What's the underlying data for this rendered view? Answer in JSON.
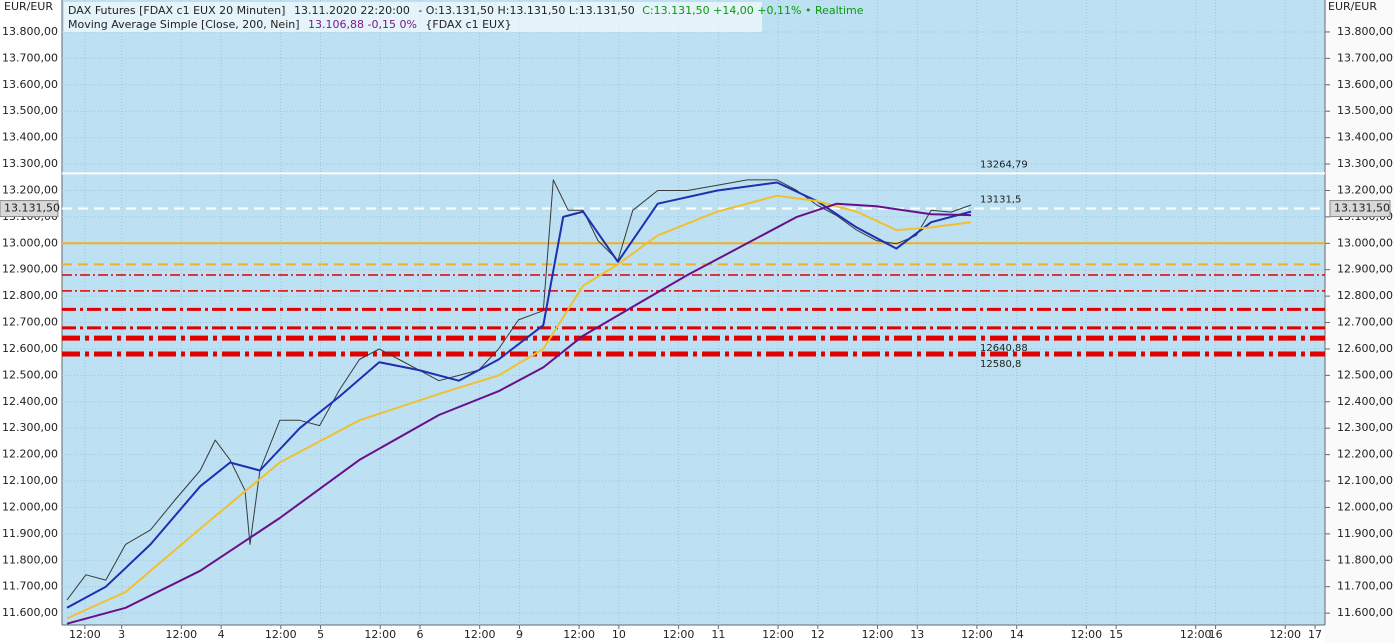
{
  "chart_data": {
    "type": "line",
    "currency_left": "EUR/EUR",
    "currency_right": "EUR/EUR",
    "header": {
      "instrument": "DAX Futures [FDAX c1 EUX 20 Minuten]",
      "time": "13.11.2020 22:20:00",
      "ohlc": "- O:13.131,50 H:13.131,50 L:13.131,50",
      "close": "C:13.131,50 +14,00 +0,11% • Realtime",
      "indicator": "Moving Average Simple [Close, 200, Nein]",
      "indicator_value": "13.106,88 -0,15 0%",
      "indicator_source": "{FDAX c1 EUX}"
    },
    "xlim": [
      0.4,
      13.1
    ],
    "xticks": [
      {
        "value": 0.63,
        "label": "12:00"
      },
      {
        "value": 1,
        "label": "3"
      },
      {
        "value": 1.6,
        "label": "12:00"
      },
      {
        "value": 2,
        "label": "4"
      },
      {
        "value": 2.6,
        "label": "12:00"
      },
      {
        "value": 3,
        "label": "5"
      },
      {
        "value": 3.6,
        "label": "12:00"
      },
      {
        "value": 4,
        "label": "6"
      },
      {
        "value": 4.6,
        "label": "12:00"
      },
      {
        "value": 5,
        "label": "9"
      },
      {
        "value": 5.6,
        "label": "12:00"
      },
      {
        "value": 6,
        "label": "10"
      },
      {
        "value": 6.6,
        "label": "12:00"
      },
      {
        "value": 7,
        "label": "11"
      },
      {
        "value": 7.6,
        "label": "12:00"
      },
      {
        "value": 8,
        "label": "12"
      },
      {
        "value": 8.6,
        "label": "12:00"
      },
      {
        "value": 9,
        "label": "13"
      },
      {
        "value": 9.6,
        "label": "12:00"
      },
      {
        "value": 10,
        "label": "14"
      },
      {
        "value": 10.7,
        "label": "12:00"
      },
      {
        "value": 11,
        "label": "15"
      },
      {
        "value": 11.8,
        "label": "12:00"
      },
      {
        "value": 12,
        "label": "16"
      },
      {
        "value": 12.7,
        "label": "12:00"
      },
      {
        "value": 13,
        "label": "17"
      }
    ],
    "ylim": [
      11555,
      13921
    ],
    "yticks": [
      {
        "value": 11600,
        "label": "11.600,00"
      },
      {
        "value": 11700,
        "label": "11.700,00"
      },
      {
        "value": 11800,
        "label": "11.800,00"
      },
      {
        "value": 11900,
        "label": "11.900,00"
      },
      {
        "value": 12000,
        "label": "12.000,00"
      },
      {
        "value": 12100,
        "label": "12.100,00"
      },
      {
        "value": 12200,
        "label": "12.200,00"
      },
      {
        "value": 12300,
        "label": "12.300,00"
      },
      {
        "value": 12400,
        "label": "12.400,00"
      },
      {
        "value": 12500,
        "label": "12.500,00"
      },
      {
        "value": 12600,
        "label": "12.600,00"
      },
      {
        "value": 12700,
        "label": "12.700,00"
      },
      {
        "value": 12800,
        "label": "12.800,00"
      },
      {
        "value": 12900,
        "label": "12.900,00"
      },
      {
        "value": 13000,
        "label": "13.000,00"
      },
      {
        "value": 13100,
        "label": "13.100,00"
      },
      {
        "value": 13200,
        "label": "13.200,00"
      },
      {
        "value": 13300,
        "label": "13.300,00"
      },
      {
        "value": 13400,
        "label": "13.400,00"
      },
      {
        "value": 13500,
        "label": "13.500,00"
      },
      {
        "value": 13600,
        "label": "13.600,00"
      },
      {
        "value": 13700,
        "label": "13.700,00"
      },
      {
        "value": 13800,
        "label": "13.800,00"
      }
    ],
    "grid": true,
    "last": {
      "value": 13131.5,
      "label": "13.131,50"
    },
    "series": [
      {
        "name": "DAX Futures [FDAX c1 EUX 20 Minuten]",
        "color": "#3a3a3a",
        "x": [
          0.45,
          0.64,
          0.84,
          1.04,
          1.29,
          1.54,
          1.79,
          1.94,
          2.09,
          2.24,
          2.29,
          2.39,
          2.59,
          2.79,
          2.99,
          3.19,
          3.39,
          3.59,
          3.79,
          3.99,
          4.19,
          4.39,
          4.59,
          4.79,
          4.99,
          5.24,
          5.34,
          5.49,
          5.64,
          5.79,
          5.99,
          6.14,
          6.39,
          6.69,
          6.99,
          7.29,
          7.59,
          7.79,
          7.99,
          8.19,
          8.39,
          8.59,
          8.79,
          8.99,
          9.14,
          9.34,
          9.54
        ],
        "values": [
          11650,
          11745,
          11725,
          11860,
          11915,
          12030,
          12140,
          12255,
          12180,
          12065,
          11860,
          12140,
          12330,
          12330,
          12310,
          12445,
          12560,
          12600,
          12560,
          12520,
          12480,
          12500,
          12520,
          12600,
          12710,
          12745,
          13240,
          13125,
          13125,
          13010,
          12935,
          13125,
          13200,
          13200,
          13220,
          13240,
          13240,
          13200,
          13145,
          13105,
          13050,
          13010,
          12998,
          13030,
          13125,
          13118,
          13145
        ]
      },
      {
        "color": "#1f2fb0",
        "x": [
          0.45,
          0.84,
          1.29,
          1.79,
          2.09,
          2.39,
          2.79,
          3.19,
          3.59,
          3.99,
          4.39,
          4.79,
          5.24,
          5.44,
          5.64,
          5.99,
          6.39,
          6.99,
          7.59,
          7.99,
          8.39,
          8.79,
          9.14,
          9.54
        ],
        "values": [
          11620,
          11700,
          11860,
          12080,
          12170,
          12140,
          12300,
          12420,
          12550,
          12520,
          12480,
          12560,
          12690,
          13100,
          13120,
          12930,
          13150,
          13200,
          13230,
          13160,
          13060,
          12980,
          13080,
          13120
        ]
      },
      {
        "color": "#f0c030",
        "x": [
          0.45,
          1.04,
          1.79,
          2.59,
          3.39,
          4.19,
          4.79,
          5.24,
          5.64,
          5.99,
          6.39,
          6.99,
          7.59,
          7.99,
          8.39,
          8.79,
          9.14,
          9.54
        ],
        "values": [
          11580,
          11680,
          11920,
          12170,
          12330,
          12430,
          12500,
          12600,
          12840,
          12920,
          13030,
          13120,
          13180,
          13160,
          13120,
          13050,
          13060,
          13080
        ]
      },
      {
        "name": "Moving Average Simple [Close, 200, Nein]",
        "color": "#6a0f8a",
        "x": [
          0.45,
          1.04,
          1.79,
          2.59,
          3.39,
          4.19,
          4.79,
          5.24,
          5.64,
          6.14,
          6.69,
          7.29,
          7.79,
          8.19,
          8.59,
          9.14,
          9.54
        ],
        "values": [
          11560,
          11620,
          11760,
          11960,
          12180,
          12350,
          12440,
          12530,
          12650,
          12760,
          12880,
          13000,
          13100,
          13150,
          13140,
          13110,
          13106.88
        ]
      }
    ],
    "levels": [
      {
        "value": 13264.79,
        "label": "13264,79",
        "color": "#ffffff",
        "width": 2,
        "dash": ""
      },
      {
        "value": 13131.5,
        "label": "13131,5",
        "color": "#ffffff",
        "width": 2,
        "dash": "10 6"
      },
      {
        "value": 13000,
        "color": "#f0b020",
        "width": 2,
        "dash": ""
      },
      {
        "value": 12920,
        "color": "#f0b020",
        "width": 2,
        "dash": "10 6"
      },
      {
        "value": 12880,
        "color": "#e00000",
        "width": 1.5,
        "dash": "10 3 2 3"
      },
      {
        "value": 12820,
        "color": "#e00000",
        "width": 1.5,
        "dash": "10 3 2 3"
      },
      {
        "value": 12750,
        "color": "#e00000",
        "width": 3,
        "dash": "14 4 3 4"
      },
      {
        "value": 12680,
        "color": "#e00000",
        "width": 3,
        "dash": "14 4 3 4"
      },
      {
        "value": 12640.88,
        "label": "12640,88",
        "color": "#e00000",
        "width": 5,
        "dash": "18 5 4 5"
      },
      {
        "value": 12580.8,
        "label": "12580,8",
        "color": "#e00000",
        "width": 5,
        "dash": "18 5 4 5"
      }
    ]
  }
}
